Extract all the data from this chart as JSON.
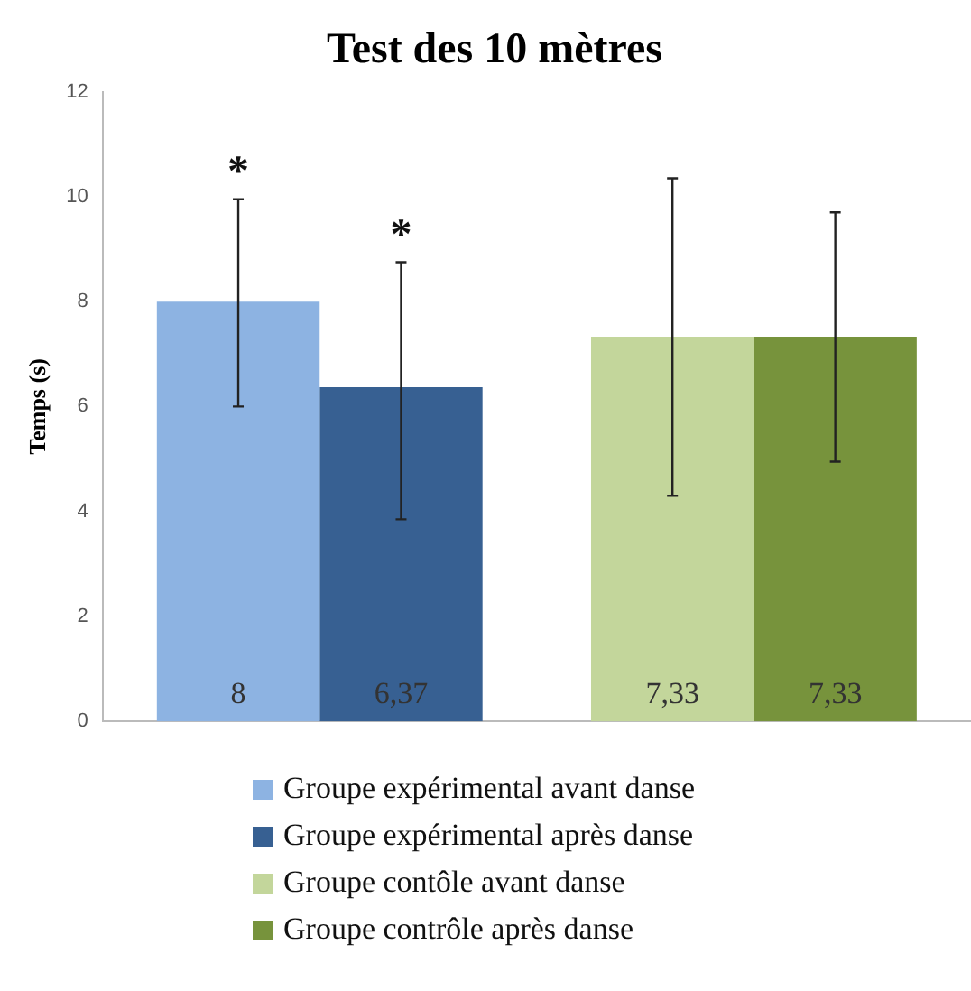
{
  "chart_data": {
    "type": "bar",
    "title": "Test des 10 mètres",
    "ylabel": "Temps (s)",
    "categories": [
      null,
      null
    ],
    "series": [
      {
        "name": "Groupe expérimental avant danse",
        "color": "#8db3e2",
        "values": [
          8,
          null
        ],
        "errors": [
          [
            6,
            9.95
          ],
          null
        ],
        "value_labels": [
          "8",
          null
        ]
      },
      {
        "name": "Groupe expérimental après danse",
        "color": "#376092",
        "values": [
          6.37,
          null
        ],
        "errors": [
          [
            3.85,
            8.75
          ],
          null
        ],
        "value_labels": [
          "6,37",
          null
        ]
      },
      {
        "name": "Groupe contôle avant danse",
        "color": "#c3d69b",
        "values": [
          null,
          7.33
        ],
        "errors": [
          null,
          [
            4.3,
            10.35
          ]
        ],
        "value_labels": [
          null,
          "7,33"
        ]
      },
      {
        "name": "Groupe contrôle après danse",
        "color": "#77933c",
        "values": [
          null,
          7.33
        ],
        "errors": [
          null,
          [
            4.95,
            9.7
          ]
        ],
        "value_labels": [
          null,
          "7,33"
        ]
      }
    ],
    "annotations": [
      "*",
      "*"
    ],
    "ylim": [
      0,
      12
    ],
    "yticks": [
      0,
      2,
      4,
      6,
      8,
      10,
      12
    ],
    "grid": false,
    "legend": "bottom"
  }
}
